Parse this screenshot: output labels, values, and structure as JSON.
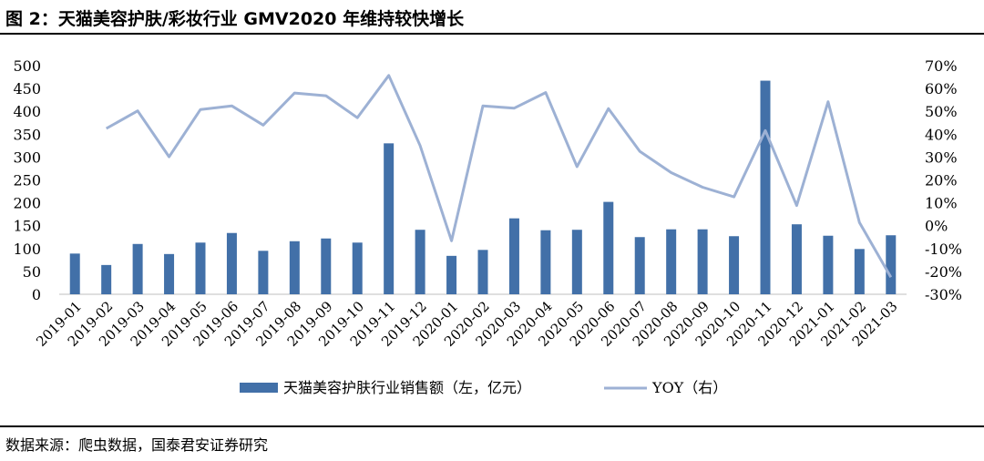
{
  "figure": {
    "title": "图 2：天猫美容护肤/彩妆行业 GMV2020 年维持较快增长",
    "source": "数据来源：爬虫数据，国泰君安证券研究"
  },
  "colors": {
    "bar": "#4270a8",
    "line": "#9db1d4",
    "axis": "#bfbfbf"
  },
  "chart_data": {
    "type": "bar",
    "categories": [
      "2019-01",
      "2019-02",
      "2019-03",
      "2019-04",
      "2019-05",
      "2019-06",
      "2019-07",
      "2019-08",
      "2019-09",
      "2019-10",
      "2019-11",
      "2019-12",
      "2020-01",
      "2020-02",
      "2020-03",
      "2020-04",
      "2020-05",
      "2020-06",
      "2020-07",
      "2020-08",
      "2020-09",
      "2020-10",
      "2020-11",
      "2020-12",
      "2021-01",
      "2021-02",
      "2021-03"
    ],
    "series": [
      {
        "name": "天猫美容护肤行业销售额（左，亿元）",
        "type": "bar",
        "axis": "left",
        "values": [
          89,
          64,
          110,
          88,
          113,
          134,
          95,
          116,
          122,
          113,
          330,
          141,
          84,
          97,
          166,
          140,
          141,
          202,
          125,
          142,
          142,
          127,
          467,
          153,
          128,
          99,
          129
        ]
      },
      {
        "name": "YOY（右）",
        "type": "line",
        "axis": "right",
        "values": [
          null,
          42.5,
          50.2,
          30.1,
          50.8,
          52.4,
          44.0,
          58.0,
          56.8,
          47.2,
          65.7,
          35.0,
          -6.6,
          52.4,
          51.4,
          58.2,
          25.8,
          51.2,
          32.5,
          23.2,
          16.8,
          12.6,
          41.6,
          8.8,
          54.2,
          1.4,
          -22.5
        ]
      }
    ],
    "y_left": {
      "ylim": [
        0,
        500
      ],
      "ticks": [
        "0",
        "50",
        "100",
        "150",
        "200",
        "250",
        "300",
        "350",
        "400",
        "450",
        "500"
      ]
    },
    "y_right": {
      "ylim": [
        -30,
        70
      ],
      "ticks": [
        "-30%",
        "-20%",
        "-10%",
        "0%",
        "10%",
        "20%",
        "30%",
        "40%",
        "50%",
        "60%",
        "70%"
      ]
    },
    "legend_position": "bottom",
    "grid": false
  }
}
